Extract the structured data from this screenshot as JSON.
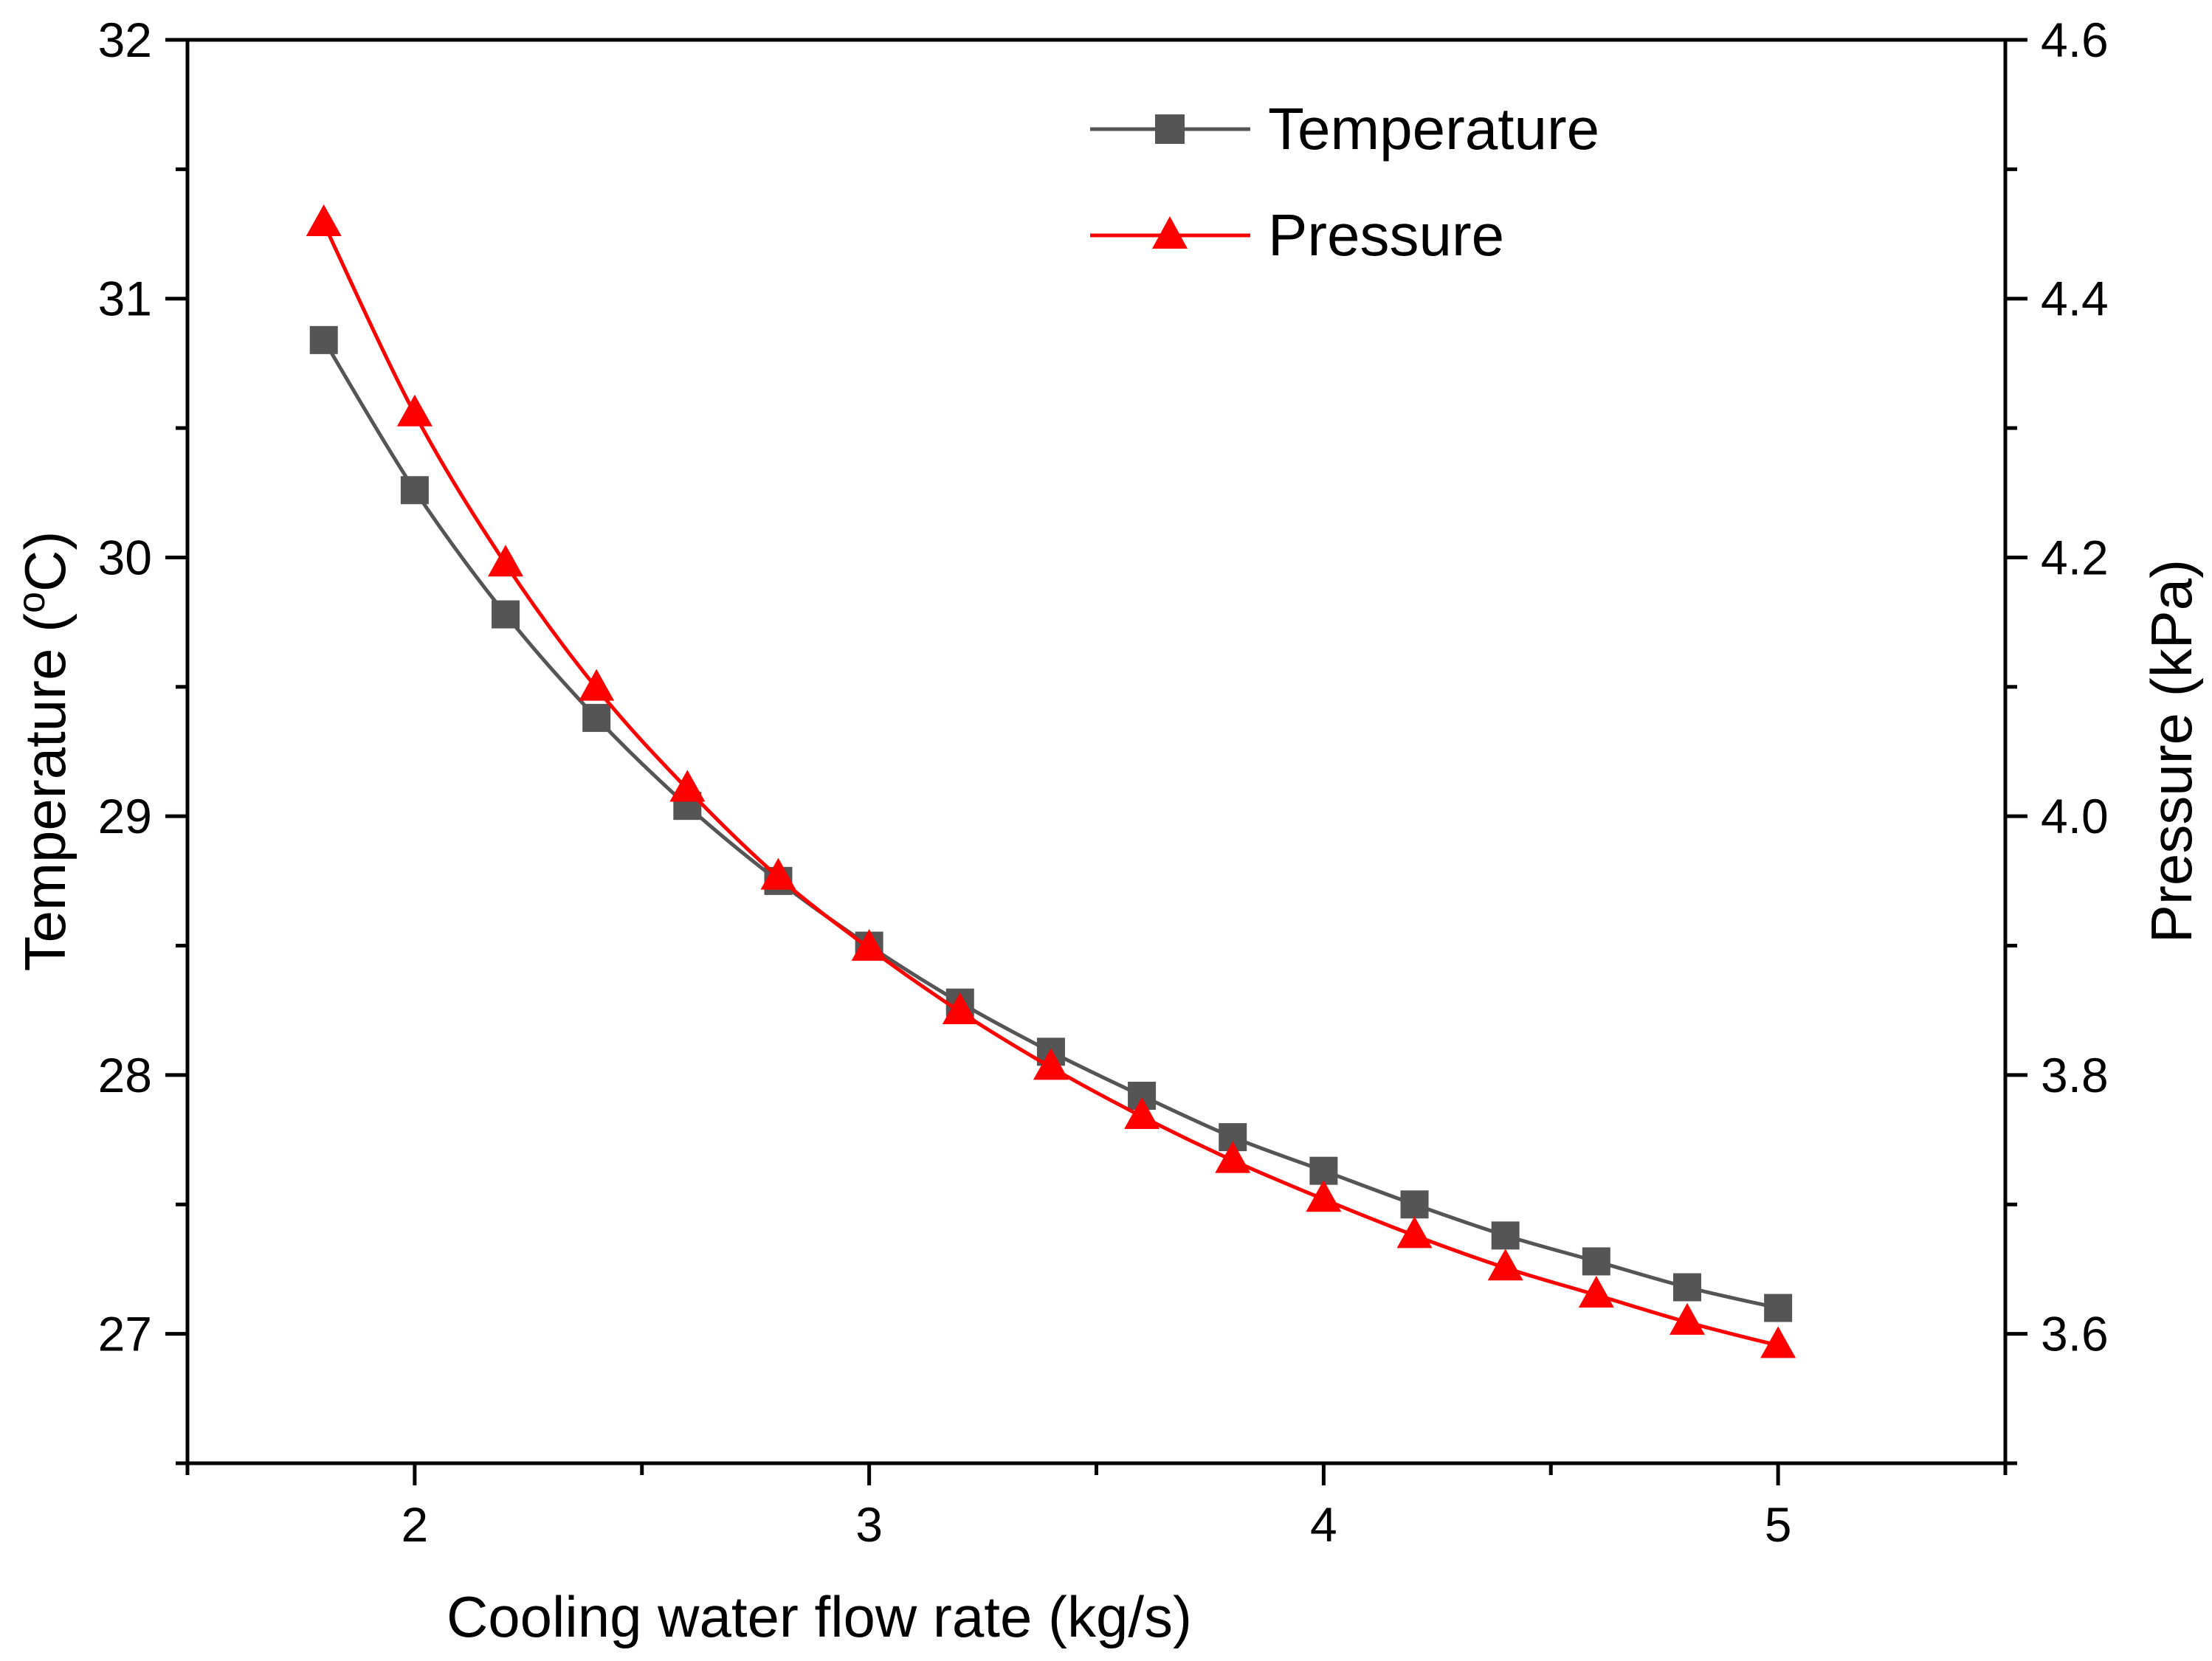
{
  "chart_data": {
    "type": "line",
    "x": [
      1.8,
      2.0,
      2.2,
      2.4,
      2.6,
      2.8,
      3.0,
      3.2,
      3.4,
      3.6,
      3.8,
      4.0,
      4.2,
      4.4,
      4.6,
      4.8,
      5.0
    ],
    "xlabel": "Cooling water flow rate (kg/s)",
    "xlim": [
      1.5,
      5.5
    ],
    "xticks": [
      2,
      3,
      4,
      5
    ],
    "xtick_labels": [
      "2",
      "3",
      "4",
      "5"
    ],
    "y_left": {
      "label": "Temperature (",
      "label_sup": "o",
      "label_end": "C)",
      "lim": [
        26.5,
        32
      ],
      "ticks": [
        27,
        28,
        29,
        30,
        31,
        32
      ],
      "tick_labels": [
        "27",
        "28",
        "29",
        "30",
        "31",
        "32"
      ]
    },
    "y_right": {
      "label": "Pressure (kPa)",
      "lim": [
        3.5,
        4.6
      ],
      "ticks": [
        3.6,
        3.8,
        4.0,
        4.2,
        4.4,
        4.6
      ],
      "tick_labels": [
        "3.6",
        "3.8",
        "4.0",
        "4.2",
        "4.4",
        "4.6"
      ]
    },
    "series": [
      {
        "name": "Temperature",
        "axis": "left",
        "color": "#555555",
        "marker": "square",
        "values": [
          30.84,
          30.26,
          29.78,
          29.38,
          29.04,
          28.75,
          28.5,
          28.28,
          28.09,
          27.92,
          27.76,
          27.63,
          27.5,
          27.38,
          27.28,
          27.18,
          27.1
        ]
      },
      {
        "name": "Pressure",
        "axis": "right",
        "color": "#ff0000",
        "marker": "triangle",
        "values": [
          4.458,
          4.311,
          4.195,
          4.099,
          4.021,
          3.953,
          3.898,
          3.849,
          3.806,
          3.768,
          3.734,
          3.704,
          3.676,
          3.651,
          3.63,
          3.609,
          3.591
        ]
      }
    ],
    "legend": {
      "position": "top-center",
      "entries": [
        "Temperature",
        "Pressure"
      ]
    }
  }
}
